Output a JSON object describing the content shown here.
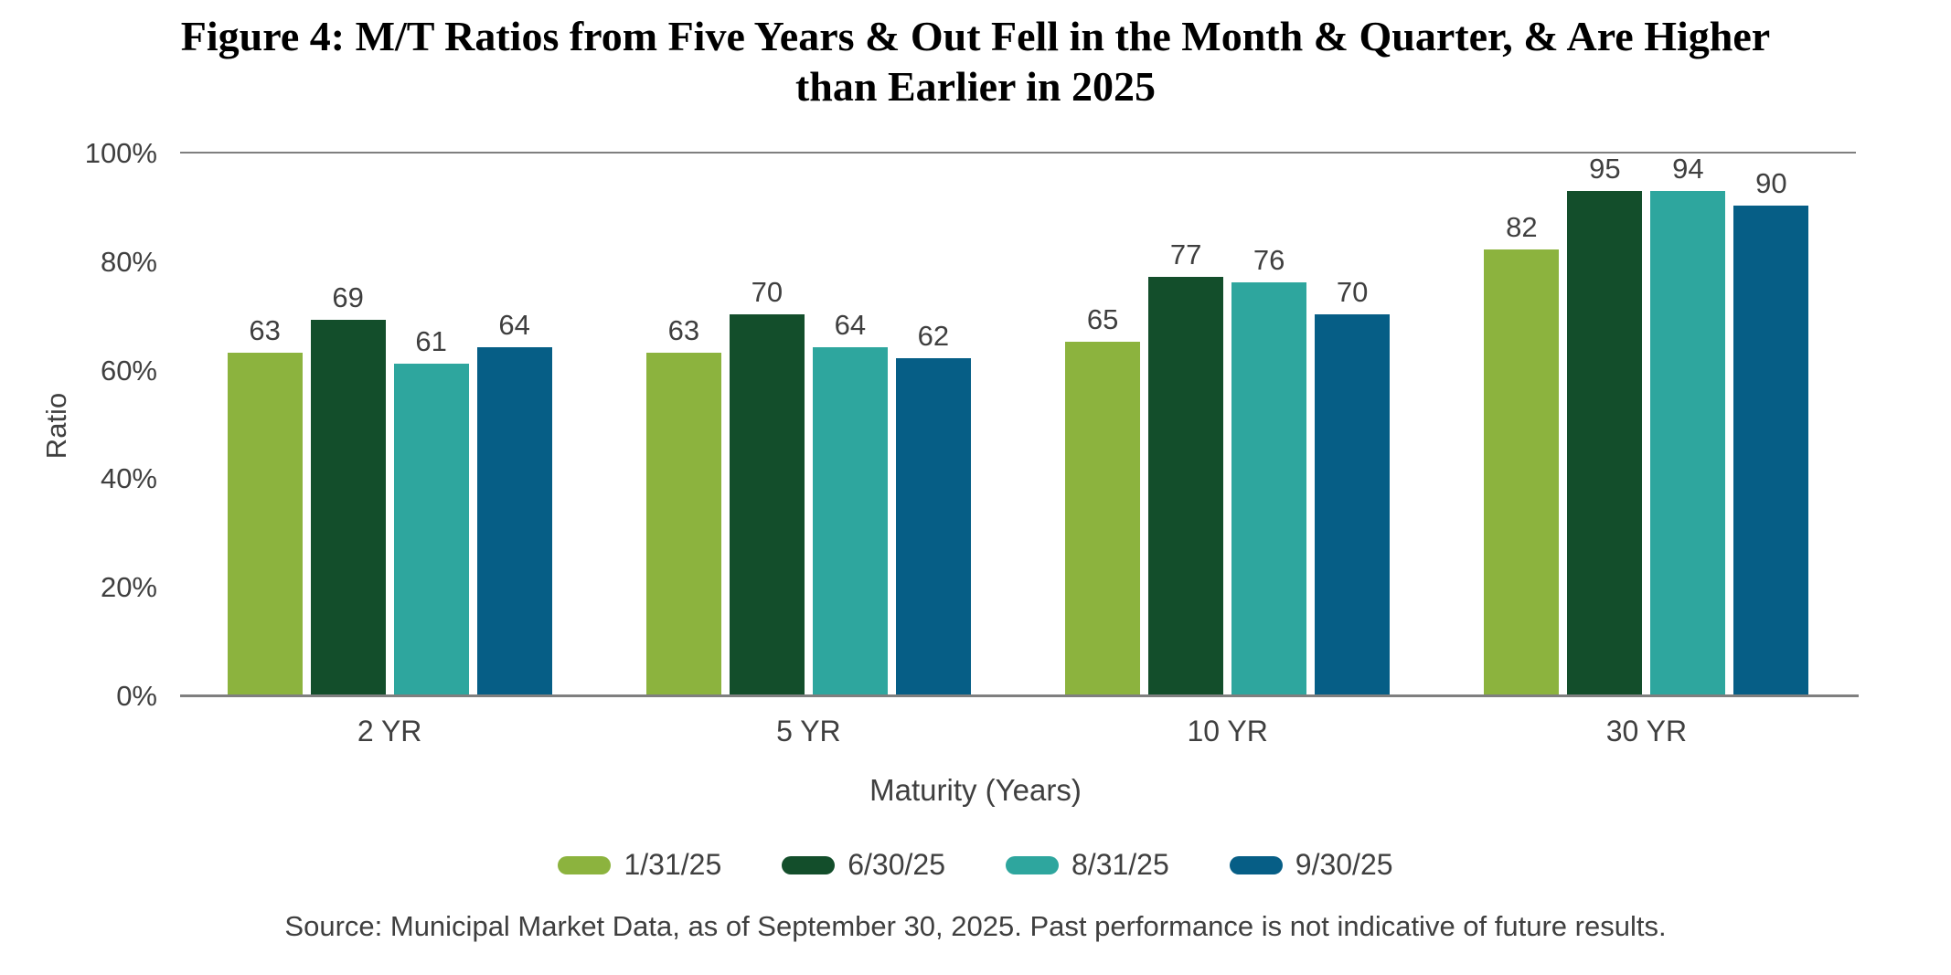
{
  "figure": {
    "title_line1": "Figure 4: M/T Ratios from Five Years & Out Fell in the Month & Quarter, & Are Higher",
    "title_line2": "than Earlier in 2025",
    "source": "Source: Municipal Market Data, as of September 30, 2025. Past performance is not indicative of future results."
  },
  "chart_data": {
    "type": "bar",
    "title": "Figure 4: M/T Ratios from Five Years & Out Fell in the Month & Quarter, & Are Higher than Earlier in 2025",
    "xlabel": "Maturity (Years)",
    "ylabel": "Ratio",
    "ylim": [
      0,
      100
    ],
    "ytick_labels": [
      "100%",
      "80%",
      "60%",
      "40%",
      "20%",
      "0%"
    ],
    "ytick_values": [
      100,
      80,
      60,
      40,
      20,
      0
    ],
    "grid": "top boundary line at 100% and baseline at 0% only, no intermediate gridlines",
    "legend_position": "bottom",
    "categories": [
      "2 YR",
      "5 YR",
      "10 YR",
      "30 YR"
    ],
    "series": [
      {
        "name": "1/31/25",
        "color": "#8CB33E",
        "values": [
          63,
          63,
          65,
          82
        ]
      },
      {
        "name": "6/30/25",
        "color": "#134E2B",
        "values": [
          69,
          70,
          77,
          95
        ]
      },
      {
        "name": "8/31/25",
        "color": "#2EA69E",
        "values": [
          61,
          64,
          76,
          94
        ]
      },
      {
        "name": "9/30/25",
        "color": "#065E86",
        "values": [
          64,
          62,
          70,
          90
        ]
      }
    ],
    "value_labels_shown": true,
    "colors": {
      "axis_line": "#7f7f7f",
      "label_text": "#3f3f3f",
      "title_text": "#000000",
      "background": "#ffffff"
    }
  }
}
